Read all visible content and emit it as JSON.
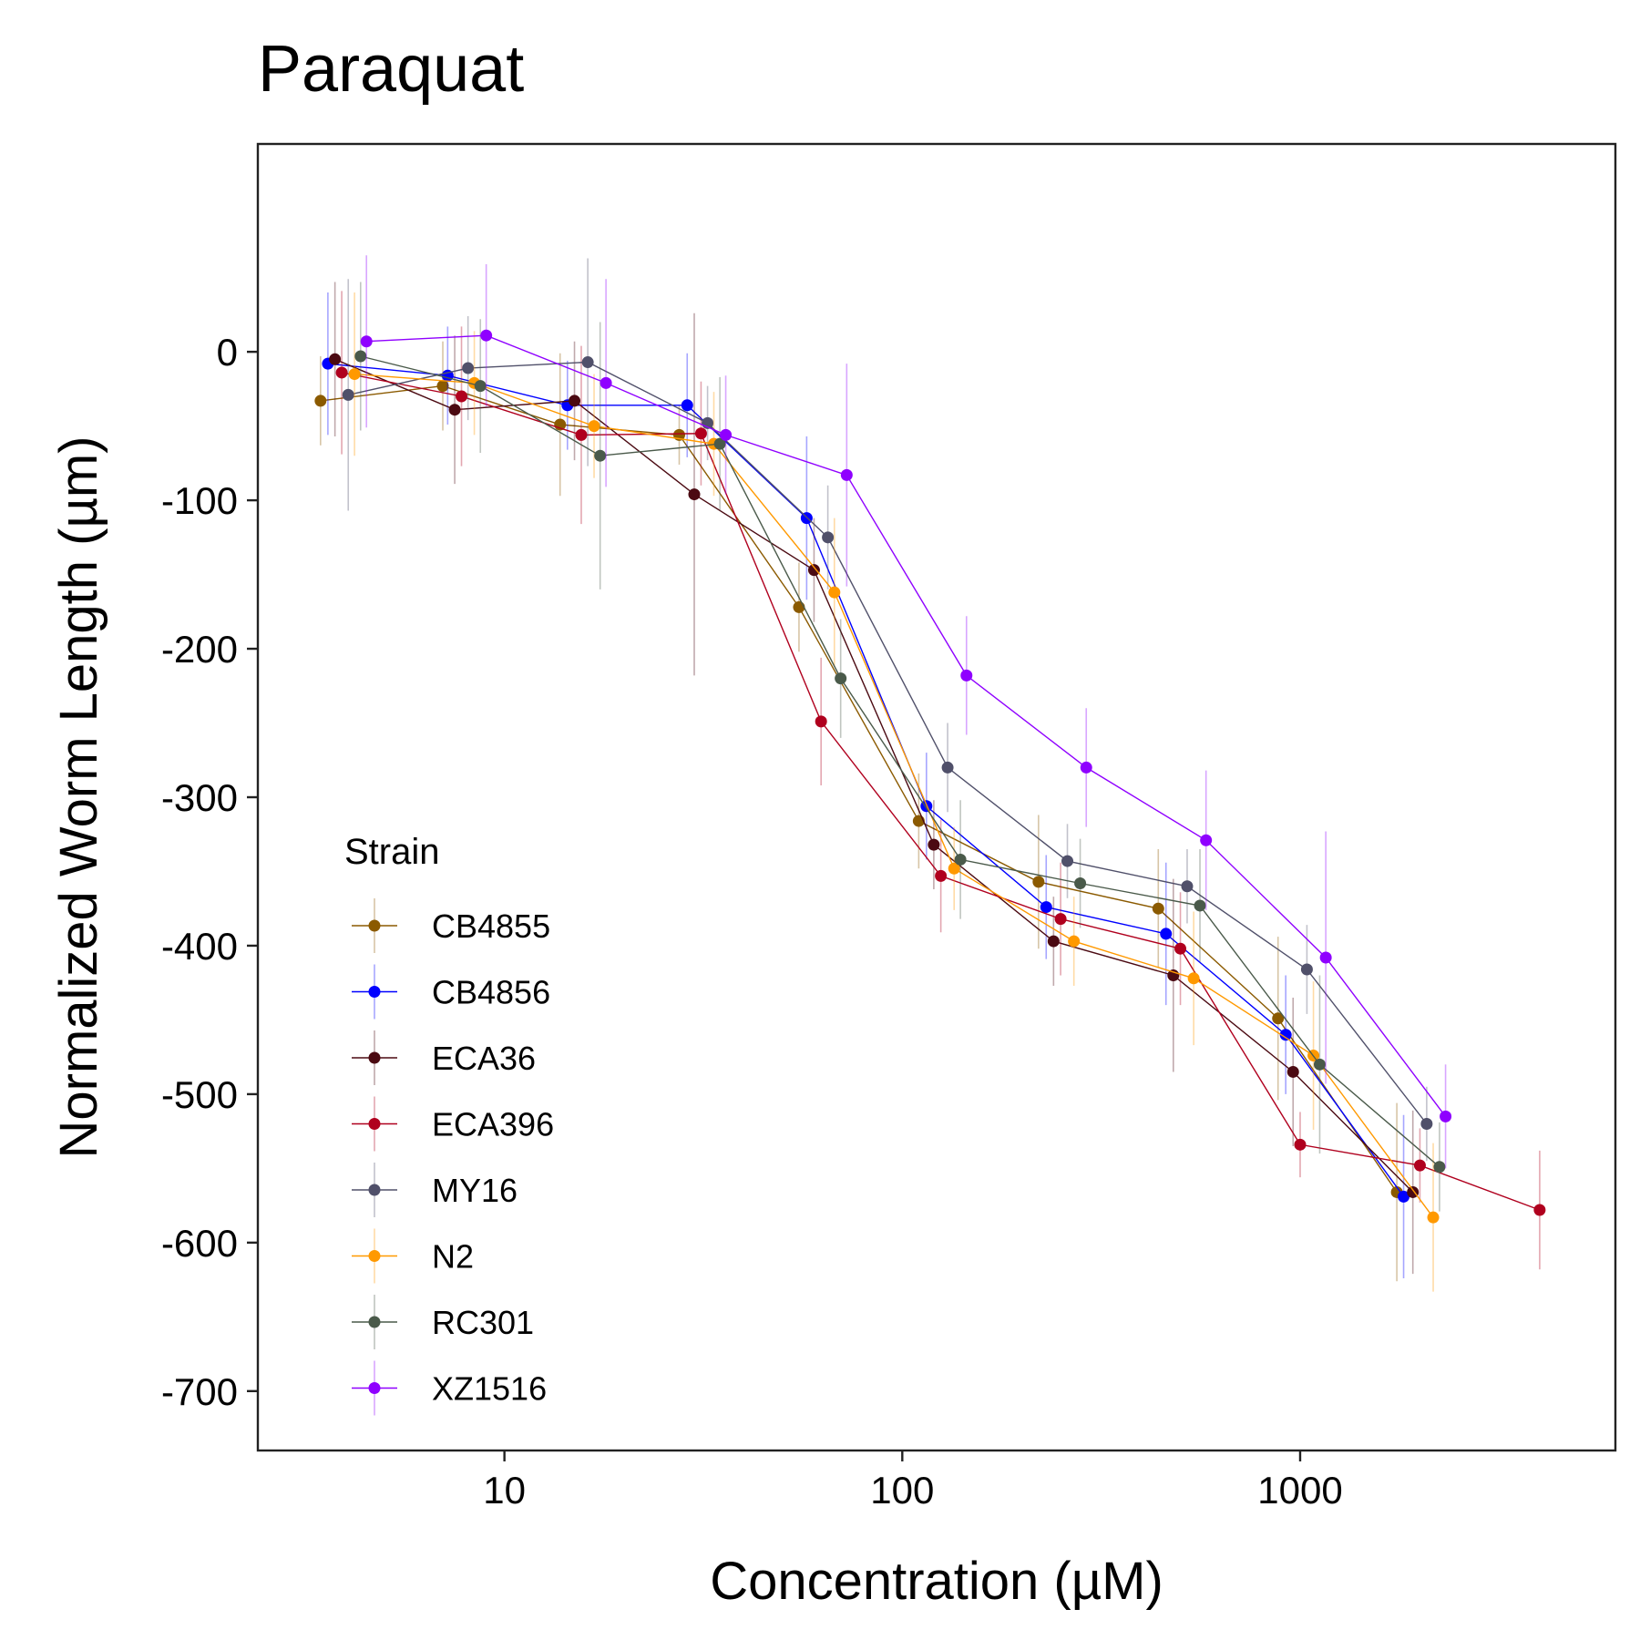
{
  "chart_data": {
    "type": "line",
    "title": "Paraquat",
    "xlabel": "Concentration (µM)",
    "ylabel": "Normalized Worm Length (µm)",
    "x_scale": "log10",
    "xlim": [
      2.4,
      6200
    ],
    "ylim": [
      -740,
      140
    ],
    "x_ticks": [
      10,
      100,
      1000
    ],
    "x_tick_labels": [
      "10",
      "100",
      "1000"
    ],
    "y_ticks": [
      0,
      -100,
      -200,
      -300,
      -400,
      -500,
      -600,
      -700
    ],
    "y_tick_labels": [
      "0",
      "-100",
      "-200",
      "-300",
      "-400",
      "-500",
      "-600",
      "-700"
    ],
    "grid": false,
    "legend": {
      "title": "Strain",
      "position": "bottom-left inside plot"
    },
    "series": [
      {
        "name": "CB4855",
        "color": "#8B5A00",
        "points": [
          [
            3.45,
            -33,
            30
          ],
          [
            7.0,
            -23,
            30
          ],
          [
            13.8,
            -49,
            48
          ],
          [
            27.5,
            -56,
            20
          ],
          [
            55,
            -172,
            30
          ],
          [
            110,
            -316,
            32
          ],
          [
            220,
            -357,
            45
          ],
          [
            440,
            -375,
            40
          ],
          [
            880,
            -449,
            55
          ],
          [
            1750,
            -566,
            60
          ]
        ]
      },
      {
        "name": "CB4856",
        "color": "#0000FF",
        "points": [
          [
            3.6,
            -8,
            48
          ],
          [
            7.2,
            -16,
            33
          ],
          [
            14.4,
            -36,
            30
          ],
          [
            28.8,
            -36,
            35
          ],
          [
            57.5,
            -112,
            55
          ],
          [
            115,
            -306,
            36
          ],
          [
            230,
            -374,
            35
          ],
          [
            460,
            -392,
            48
          ],
          [
            920,
            -460,
            40
          ],
          [
            1820,
            -569,
            55
          ]
        ]
      },
      {
        "name": "ECA36",
        "color": "#4B0A12",
        "points": [
          [
            3.75,
            -5,
            52
          ],
          [
            7.5,
            -39,
            50
          ],
          [
            15.0,
            -33,
            40
          ],
          [
            30.0,
            -96,
            122
          ],
          [
            60,
            -147,
            35
          ],
          [
            120,
            -332,
            30
          ],
          [
            240,
            -397,
            30
          ],
          [
            480,
            -420,
            65
          ],
          [
            960,
            -485,
            50
          ],
          [
            1920,
            -566,
            55
          ]
        ]
      },
      {
        "name": "ECA396",
        "color": "#B0001E",
        "points": [
          [
            3.9,
            -14,
            55
          ],
          [
            7.8,
            -30,
            47
          ],
          [
            15.6,
            -56,
            60
          ],
          [
            31.2,
            -55,
            35
          ],
          [
            62.5,
            -249,
            43
          ],
          [
            125,
            -353,
            38
          ],
          [
            250,
            -382,
            38
          ],
          [
            500,
            -402,
            38
          ],
          [
            1000,
            -534,
            22
          ],
          [
            2000,
            -548,
            25
          ],
          [
            4000,
            -578,
            40
          ]
        ]
      },
      {
        "name": "MY16",
        "color": "#50506A",
        "points": [
          [
            4.05,
            -29,
            78
          ],
          [
            8.1,
            -11,
            35
          ],
          [
            16.2,
            -7,
            70
          ],
          [
            32.4,
            -48,
            25
          ],
          [
            65,
            -125,
            35
          ],
          [
            130,
            -280,
            30
          ],
          [
            260,
            -343,
            25
          ],
          [
            520,
            -360,
            25
          ],
          [
            1040,
            -416,
            30
          ],
          [
            2080,
            -520,
            25
          ]
        ]
      },
      {
        "name": "N2",
        "color": "#FF9900",
        "points": [
          [
            4.2,
            -15,
            55
          ],
          [
            8.4,
            -21,
            35
          ],
          [
            16.8,
            -50,
            35
          ],
          [
            33.6,
            -62,
            35
          ],
          [
            67.5,
            -162,
            50
          ],
          [
            135,
            -348,
            28
          ],
          [
            270,
            -397,
            30
          ],
          [
            540,
            -422,
            45
          ],
          [
            1080,
            -474,
            50
          ],
          [
            2160,
            -583,
            50
          ]
        ]
      },
      {
        "name": "RC301",
        "color": "#4A5A4A",
        "points": [
          [
            4.35,
            -3,
            50
          ],
          [
            8.7,
            -23,
            45
          ],
          [
            17.4,
            -70,
            90
          ],
          [
            34.8,
            -62,
            45
          ],
          [
            70,
            -220,
            40
          ],
          [
            140,
            -342,
            40
          ],
          [
            280,
            -358,
            30
          ],
          [
            560,
            -373,
            38
          ],
          [
            1120,
            -480,
            60
          ],
          [
            2240,
            -549,
            30
          ]
        ]
      },
      {
        "name": "XZ1516",
        "color": "#8F00FF",
        "points": [
          [
            4.5,
            7,
            58
          ],
          [
            9.0,
            11,
            48
          ],
          [
            18.0,
            -21,
            70
          ],
          [
            36,
            -56,
            40
          ],
          [
            72.5,
            -83,
            75
          ],
          [
            145,
            -218,
            40
          ],
          [
            290,
            -280,
            40
          ],
          [
            580,
            -329,
            47
          ],
          [
            1160,
            -408,
            85
          ],
          [
            2320,
            -515,
            35
          ]
        ]
      }
    ]
  }
}
